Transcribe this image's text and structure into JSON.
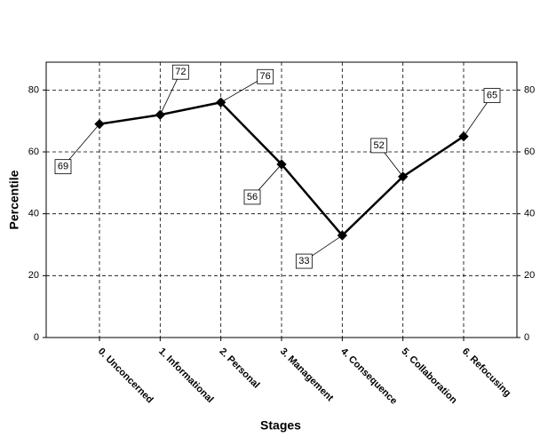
{
  "chart_data": {
    "type": "line",
    "x_label": "Stages",
    "y_label": "Percentile",
    "categories": [
      "0. Unconcerned",
      "1. Informational",
      "2. Personal",
      "3. Management",
      "4. Consequence",
      "5. Collaboration",
      "6. Refocusing"
    ],
    "values": [
      69,
      72,
      76,
      56,
      33,
      52,
      65
    ],
    "color": "#000000",
    "ylim": [
      0,
      89
    ],
    "yticks": [
      0,
      20,
      40,
      60,
      80
    ],
    "grid": true
  }
}
